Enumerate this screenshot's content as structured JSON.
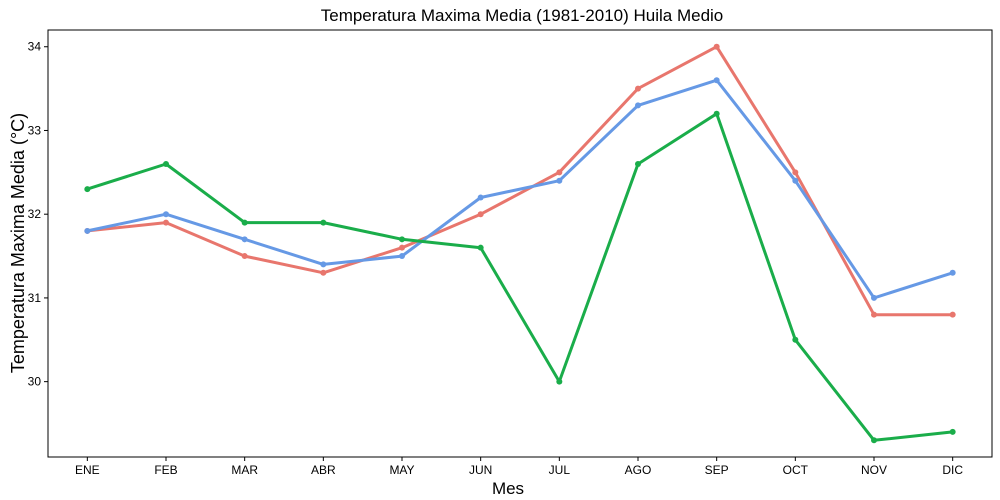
{
  "chart_data": {
    "type": "line",
    "title": "Temperatura Maxima Media (1981-2010)  Huila Medio",
    "xlabel": "Mes",
    "ylabel": "Temperatura Maxima Media  (°C)",
    "categories": [
      "ENE",
      "FEB",
      "MAR",
      "ABR",
      "MAY",
      "JUN",
      "JUL",
      "AGO",
      "SEP",
      "OCT",
      "NOV",
      "DIC"
    ],
    "yticks": [
      30,
      31,
      32,
      33,
      34
    ],
    "ylim": [
      29.1,
      34.2
    ],
    "grid": false,
    "legend": "none",
    "series": [
      {
        "color": "#E8766D",
        "values": [
          31.8,
          31.9,
          31.5,
          31.3,
          31.6,
          32.0,
          32.5,
          33.5,
          34.0,
          32.5,
          30.8,
          30.8
        ]
      },
      {
        "color": "#6699E5",
        "values": [
          31.8,
          32.0,
          31.7,
          31.4,
          31.5,
          32.2,
          32.4,
          33.3,
          33.6,
          32.4,
          31.0,
          31.3
        ]
      },
      {
        "color": "#1AAD4A",
        "values": [
          32.3,
          32.6,
          31.9,
          31.9,
          31.7,
          31.6,
          30.0,
          32.6,
          33.2,
          30.5,
          29.3,
          29.4
        ]
      }
    ]
  }
}
